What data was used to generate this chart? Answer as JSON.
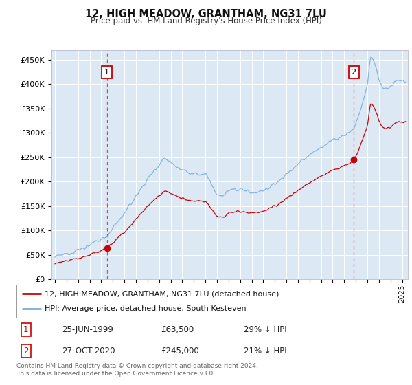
{
  "title": "12, HIGH MEADOW, GRANTHAM, NG31 7LU",
  "subtitle": "Price paid vs. HM Land Registry's House Price Index (HPI)",
  "ylim": [
    0,
    470000
  ],
  "yticks": [
    0,
    50000,
    100000,
    150000,
    200000,
    250000,
    300000,
    350000,
    400000,
    450000
  ],
  "ytick_labels": [
    "£0",
    "£50K",
    "£100K",
    "£150K",
    "£200K",
    "£250K",
    "£300K",
    "£350K",
    "£400K",
    "£450K"
  ],
  "background_color": "#dde8f5",
  "grid_color": "#ffffff",
  "red_line_color": "#cc0000",
  "blue_line_color": "#7aaddb",
  "transaction1": {
    "date": "25-JUN-1999",
    "price": 63500,
    "label": "1",
    "pct": "29% ↓ HPI"
  },
  "transaction2": {
    "date": "27-OCT-2020",
    "price": 245000,
    "label": "2",
    "pct": "21% ↓ HPI"
  },
  "legend_line1": "12, HIGH MEADOW, GRANTHAM, NG31 7LU (detached house)",
  "legend_line2": "HPI: Average price, detached house, South Kesteven",
  "footer": "Contains HM Land Registry data © Crown copyright and database right 2024.\nThis data is licensed under the Open Government Licence v3.0.",
  "sale1_year": 1999.48,
  "sale2_year": 2020.82,
  "xmin": 1995.0,
  "xmax": 2025.5
}
